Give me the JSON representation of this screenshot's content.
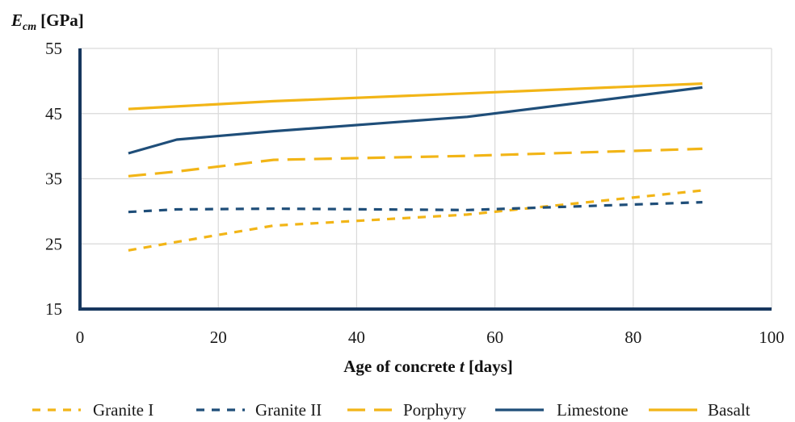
{
  "chart_data": {
    "type": "line",
    "ylabel": {
      "main": "E",
      "sub": "cm",
      "unit": "[GPa]"
    },
    "xlabel": {
      "prefix": "Age of concrete ",
      "var": "t",
      "suffix": " [days]"
    },
    "xlim": [
      0,
      100
    ],
    "ylim": [
      15,
      55
    ],
    "x_ticks": [
      "0",
      "20",
      "40",
      "60",
      "80",
      "100"
    ],
    "y_ticks": [
      "15",
      "25",
      "35",
      "45",
      "55"
    ],
    "grid": true,
    "legend_position": "bottom",
    "series": [
      {
        "name": "Granite I",
        "color": "#F2B517",
        "dash": "short-dash",
        "points": [
          [
            7,
            24.0
          ],
          [
            14,
            25.3
          ],
          [
            28,
            27.8
          ],
          [
            56,
            29.5
          ],
          [
            90,
            33.2
          ]
        ]
      },
      {
        "name": "Granite II",
        "color": "#1F4E79",
        "dash": "short-dash",
        "points": [
          [
            7,
            29.9
          ],
          [
            14,
            30.3
          ],
          [
            28,
            30.4
          ],
          [
            56,
            30.2
          ],
          [
            90,
            31.4
          ]
        ]
      },
      {
        "name": "Porphyry",
        "color": "#F2B517",
        "dash": "long-dash",
        "points": [
          [
            7,
            35.4
          ],
          [
            14,
            36.1
          ],
          [
            28,
            37.9
          ],
          [
            56,
            38.5
          ],
          [
            90,
            39.6
          ]
        ]
      },
      {
        "name": "Limestone",
        "color": "#1F4E79",
        "dash": "solid",
        "points": [
          [
            7,
            38.9
          ],
          [
            14,
            41.0
          ],
          [
            28,
            42.3
          ],
          [
            56,
            44.5
          ],
          [
            90,
            49.0
          ]
        ]
      },
      {
        "name": "Basalt",
        "color": "#F2B517",
        "dash": "solid",
        "points": [
          [
            7,
            45.7
          ],
          [
            14,
            46.1
          ],
          [
            28,
            46.9
          ],
          [
            56,
            48.1
          ],
          [
            90,
            49.6
          ]
        ]
      }
    ]
  }
}
